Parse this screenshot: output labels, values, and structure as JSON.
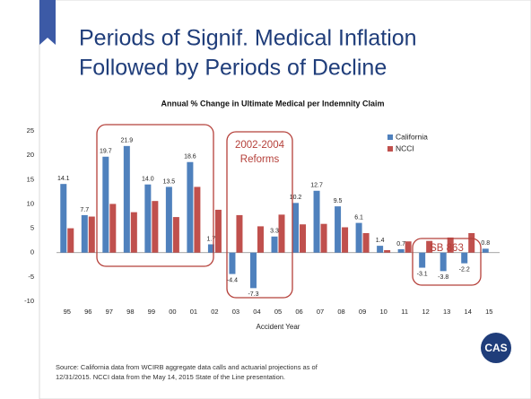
{
  "title_lines": [
    "Periods of Signif. Medical Inflation",
    "Followed by Periods of Decline"
  ],
  "chart_data": {
    "type": "bar",
    "title": "Annual % Change in Ultimate Medical per Indemnity Claim",
    "x_label": "Accident Year",
    "categories": [
      "95",
      "96",
      "97",
      "98",
      "99",
      "00",
      "01",
      "02",
      "03",
      "04",
      "05",
      "06",
      "07",
      "08",
      "09",
      "10",
      "11",
      "12",
      "13",
      "14",
      "15"
    ],
    "series": [
      {
        "name": "California",
        "color": "#4f81bd",
        "values": [
          14.1,
          7.7,
          19.7,
          21.9,
          14,
          13.5,
          18.6,
          1.7,
          -4.4,
          -7.3,
          3.3,
          10.2,
          12.7,
          9.5,
          6.1,
          1.4,
          0.7,
          -3.1,
          -3.8,
          -2.2,
          0.8
        ],
        "value_labels": [
          "14.1",
          "7.7",
          "19.7",
          "21.9",
          "14.0",
          "13.5",
          "18.6",
          "1.7",
          "-4.4",
          "-7.3",
          "3.3",
          "10.2",
          "12.7",
          "9.5",
          "6.1",
          "1.4",
          "0.7",
          "-3.1",
          "-3.8",
          "-2.2",
          "0.8"
        ]
      },
      {
        "name": "NCCI",
        "color": "#c0504d",
        "values": [
          5.0,
          7.4,
          10.0,
          8.3,
          10.6,
          7.3,
          13.5,
          8.8,
          7.7,
          5.4,
          7.8,
          5.8,
          5.9,
          5.2,
          4.0,
          0.5,
          2.3,
          2.4,
          3.1,
          4.0,
          null
        ]
      }
    ],
    "ylim": [
      -10,
      25
    ],
    "yticks": [
      -10,
      -5,
      0,
      5,
      10,
      15,
      20,
      25
    ],
    "legend": "upper right",
    "annotations": [
      {
        "lines": [
          "2002-2004",
          "Reforms"
        ]
      },
      {
        "lines": [
          "SB 863"
        ]
      }
    ]
  },
  "source_lines": [
    "Source: California data from WCIRB aggregate data calls and actuarial projections as of",
    "12/31/2015. NCCI data from the May 14, 2015 State of the Line presentation."
  ],
  "logo": "CAS"
}
